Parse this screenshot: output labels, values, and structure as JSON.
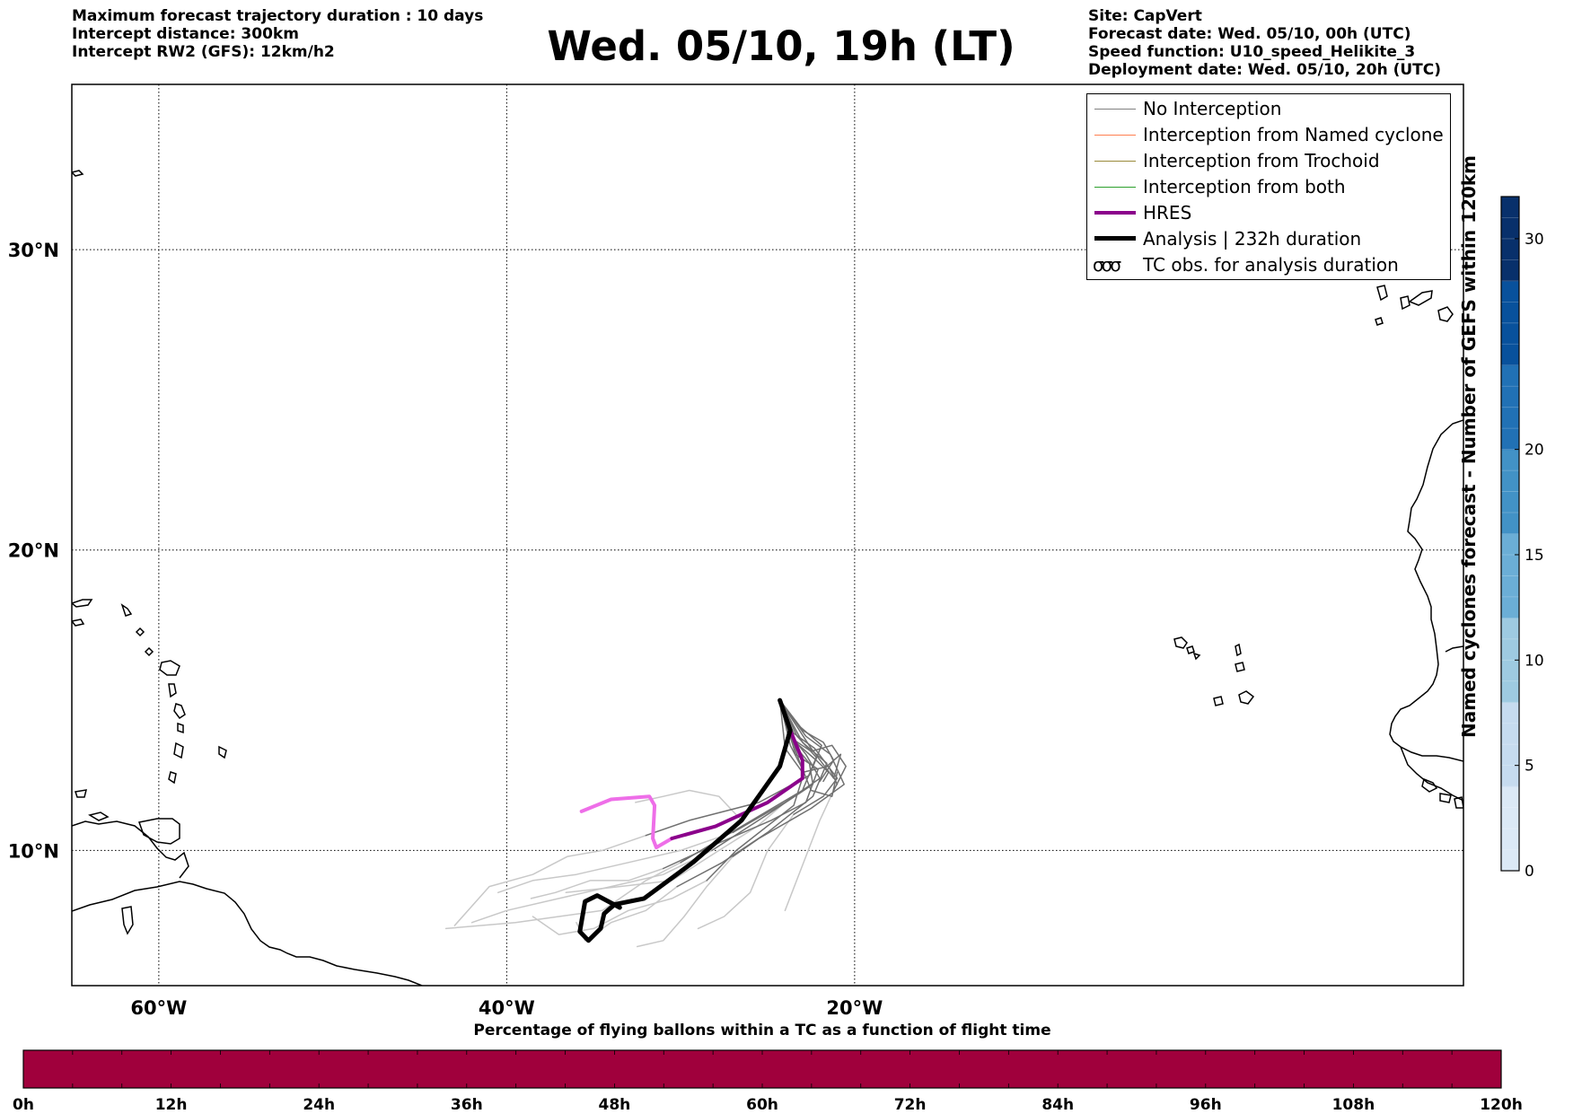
{
  "header": {
    "left_lines": [
      "Maximum forecast trajectory duration : 10 days",
      "Intercept distance: 300km",
      "Intercept RW2 (GFS):  12km/h2"
    ],
    "title": "Wed. 05/10, 19h (LT)",
    "right_lines": [
      "Site: CapVert",
      "Forecast date: Wed. 05/10, 00h (UTC)",
      "Speed function: U10_speed_Helikite_3",
      "Deployment date: Wed. 05/10, 20h (UTC)"
    ]
  },
  "map": {
    "lon_range": [
      -65,
      15
    ],
    "lat_range": [
      5.5,
      35.5
    ],
    "lon_ticks": [
      {
        "lon": -60,
        "label": "60°W"
      },
      {
        "lon": -40,
        "label": "40°W"
      },
      {
        "lon": -20,
        "label": "20°W"
      }
    ],
    "lat_ticks": [
      {
        "lat": 30,
        "label": "30°N"
      },
      {
        "lat": 20,
        "label": "20°N"
      },
      {
        "lat": 10,
        "label": "10°N"
      }
    ],
    "grid": "dotted"
  },
  "legend": {
    "placement": "top-right",
    "entries": [
      {
        "label": "No Interception",
        "color": "#808080",
        "style": "thin"
      },
      {
        "label": "Interception from Named cyclone",
        "color": "#ff7f50",
        "style": "thin"
      },
      {
        "label": "Interception from Trochoid",
        "color": "#9a8a3a",
        "style": "thin"
      },
      {
        "label": "Interception from both",
        "color": "#2ca02c",
        "style": "thin"
      },
      {
        "label": "HRES",
        "color": "#8b008b",
        "style": "medium"
      },
      {
        "label": "Analysis | 232h duration",
        "color": "#000000",
        "style": "thick"
      },
      {
        "label": "TC obs. for analysis duration",
        "icon": "cyclone-rings-icon",
        "style": "glyph"
      }
    ]
  },
  "colorbar_vertical": {
    "label": "Named cyclones forecast - Number of GEFS within 120km",
    "min": 0,
    "max": 32,
    "ticks": [
      0,
      5,
      10,
      15,
      20,
      30
    ],
    "colors": [
      "#dbe9f6",
      "#c6dbef",
      "#9ecae1",
      "#6baed6",
      "#4292c6",
      "#2171b5",
      "#08519c",
      "#08306b"
    ]
  },
  "colorbar_horizontal": {
    "title": "Percentage of flying ballons within a TC as a function of flight time",
    "ticks": [
      "0h",
      "12h",
      "24h",
      "36h",
      "48h",
      "60h",
      "72h",
      "84h",
      "96h",
      "108h",
      "120h"
    ],
    "fill_color": "#a0003c",
    "segment_hours": 4,
    "max_hours": 120
  },
  "trajectories": {
    "origin": [
      -24.3,
      15.0
    ],
    "analysis": [
      [
        -24.3,
        15.0
      ],
      [
        -23.7,
        14.0
      ],
      [
        -24.3,
        12.8
      ],
      [
        -26.5,
        11.0
      ],
      [
        -29.3,
        9.6
      ],
      [
        -32.1,
        8.4
      ],
      [
        -33.8,
        8.2
      ],
      [
        -34.4,
        7.9
      ],
      [
        -34.6,
        7.4
      ],
      [
        -35.3,
        7.0
      ],
      [
        -35.8,
        7.3
      ],
      [
        -35.5,
        8.3
      ],
      [
        -34.8,
        8.5
      ],
      [
        -33.5,
        8.1
      ]
    ],
    "hres_dark": [
      [
        -24.3,
        15.0
      ],
      [
        -23.7,
        14.0
      ],
      [
        -23.0,
        13.0
      ],
      [
        -23.0,
        12.4
      ],
      [
        -25.0,
        11.6
      ],
      [
        -28.0,
        10.8
      ],
      [
        -30.5,
        10.4
      ]
    ],
    "hres_light": [
      [
        -30.5,
        10.4
      ],
      [
        -31.4,
        10.1
      ],
      [
        -31.6,
        10.4
      ],
      [
        -31.5,
        11.5
      ],
      [
        -31.8,
        11.8
      ],
      [
        -34.0,
        11.7
      ],
      [
        -35.7,
        11.3
      ]
    ],
    "gefs_dark": [
      [
        [
          -24.3,
          15.0
        ],
        [
          -23.4,
          13.6
        ],
        [
          -22.2,
          13.0
        ],
        [
          -21.5,
          12.6
        ],
        [
          -21.8,
          12.3
        ]
      ],
      [
        [
          -24.3,
          15.0
        ],
        [
          -23.0,
          14.0
        ],
        [
          -21.8,
          13.6
        ],
        [
          -21.2,
          13.0
        ],
        [
          -22.0,
          12.3
        ]
      ],
      [
        [
          -24.3,
          15.0
        ],
        [
          -24.0,
          13.4
        ],
        [
          -23.0,
          12.6
        ],
        [
          -21.5,
          12.8
        ],
        [
          -21.0,
          12.2
        ]
      ],
      [
        [
          -24.3,
          15.0
        ],
        [
          -22.5,
          13.4
        ],
        [
          -21.2,
          12.4
        ],
        [
          -20.8,
          13.2
        ],
        [
          -21.6,
          12.8
        ]
      ],
      [
        [
          -24.3,
          15.0
        ],
        [
          -23.2,
          13.0
        ],
        [
          -22.5,
          12.0
        ],
        [
          -21.3,
          11.8
        ],
        [
          -21.0,
          12.6
        ]
      ],
      [
        [
          -24.3,
          15.0
        ],
        [
          -23.9,
          14.0
        ],
        [
          -22.8,
          13.2
        ],
        [
          -22.0,
          12.4
        ],
        [
          -24.0,
          11.6
        ],
        [
          -27.0,
          10.6
        ]
      ],
      [
        [
          -24.3,
          15.0
        ],
        [
          -23.6,
          13.6
        ],
        [
          -22.6,
          12.9
        ],
        [
          -22.4,
          12.2
        ],
        [
          -25.0,
          11.2
        ],
        [
          -28.2,
          10.0
        ]
      ],
      [
        [
          -24.3,
          15.0
        ],
        [
          -23.3,
          13.8
        ],
        [
          -22.2,
          13.1
        ],
        [
          -23.0,
          12.0
        ],
        [
          -26.5,
          10.8
        ],
        [
          -30.0,
          9.6
        ]
      ],
      [
        [
          -24.3,
          15.0
        ],
        [
          -23.1,
          14.1
        ],
        [
          -21.9,
          13.5
        ],
        [
          -22.6,
          12.5
        ],
        [
          -25.5,
          11.6
        ],
        [
          -29.5,
          11.0
        ],
        [
          -32.0,
          10.5
        ]
      ],
      [
        [
          -24.3,
          15.0
        ],
        [
          -23.7,
          13.5
        ],
        [
          -22.9,
          12.6
        ],
        [
          -23.5,
          11.5
        ],
        [
          -26.8,
          10.0
        ],
        [
          -28.5,
          9.0
        ]
      ],
      [
        [
          -24.3,
          15.0
        ],
        [
          -23.0,
          13.6
        ],
        [
          -21.6,
          12.9
        ],
        [
          -22.4,
          11.8
        ],
        [
          -25.0,
          10.6
        ],
        [
          -27.6,
          9.6
        ],
        [
          -30.2,
          8.8
        ]
      ],
      [
        [
          -24.3,
          15.0
        ],
        [
          -23.5,
          13.9
        ],
        [
          -22.3,
          13.4
        ],
        [
          -21.0,
          12.4
        ],
        [
          -21.8,
          11.8
        ],
        [
          -23.5,
          11.2
        ]
      ],
      [
        [
          -24.3,
          15.0
        ],
        [
          -23.8,
          13.8
        ],
        [
          -22.5,
          13.3
        ],
        [
          -21.3,
          13.5
        ],
        [
          -20.5,
          12.8
        ],
        [
          -21.2,
          12.0
        ]
      ],
      [
        [
          -24.3,
          15.0
        ],
        [
          -22.8,
          13.8
        ],
        [
          -21.4,
          13.2
        ],
        [
          -20.6,
          12.2
        ],
        [
          -22.5,
          11.4
        ],
        [
          -25.5,
          10.4
        ],
        [
          -27.0,
          9.8
        ]
      ],
      [
        [
          -24.3,
          15.0
        ],
        [
          -23.4,
          13.2
        ],
        [
          -22.1,
          12.7
        ],
        [
          -22.8,
          11.6
        ],
        [
          -24.8,
          11.0
        ],
        [
          -28.0,
          10.2
        ],
        [
          -31.0,
          9.4
        ]
      ]
    ],
    "gefs_light": [
      [
        [
          -27.0,
          10.6
        ],
        [
          -30.0,
          10.0
        ],
        [
          -33.0,
          9.6
        ],
        [
          -36.0,
          9.2
        ],
        [
          -38.5,
          9.0
        ],
        [
          -40.5,
          8.6
        ]
      ],
      [
        [
          -28.2,
          10.0
        ],
        [
          -31.0,
          9.2
        ],
        [
          -34.0,
          8.8
        ],
        [
          -37.0,
          8.4
        ],
        [
          -40.0,
          8.0
        ],
        [
          -42.0,
          7.6
        ]
      ],
      [
        [
          -30.0,
          9.6
        ],
        [
          -32.0,
          9.0
        ],
        [
          -34.5,
          8.0
        ],
        [
          -37.0,
          7.8
        ],
        [
          -39.5,
          7.6
        ],
        [
          -43.5,
          7.4
        ]
      ],
      [
        [
          -32.0,
          10.5
        ],
        [
          -34.5,
          10.0
        ],
        [
          -36.5,
          9.8
        ],
        [
          -38.5,
          9.2
        ],
        [
          -41.0,
          8.8
        ],
        [
          -43.0,
          7.5
        ]
      ],
      [
        [
          -28.5,
          9.0
        ],
        [
          -30.5,
          8.4
        ],
        [
          -33.0,
          8.0
        ],
        [
          -35.0,
          7.4
        ],
        [
          -37.0,
          7.2
        ],
        [
          -38.5,
          7.8
        ]
      ],
      [
        [
          -30.2,
          8.8
        ],
        [
          -32.0,
          8.0
        ],
        [
          -34.0,
          7.6
        ],
        [
          -35.5,
          7.0
        ],
        [
          -36.0,
          7.6
        ]
      ],
      [
        [
          -23.5,
          11.2
        ],
        [
          -25.0,
          10.0
        ],
        [
          -26.0,
          8.6
        ],
        [
          -27.5,
          7.8
        ],
        [
          -29.0,
          7.4
        ]
      ],
      [
        [
          -21.2,
          12.0
        ],
        [
          -22.0,
          11.0
        ],
        [
          -22.8,
          9.8
        ],
        [
          -23.6,
          8.6
        ],
        [
          -24.0,
          8.0
        ]
      ],
      [
        [
          -27.0,
          9.8
        ],
        [
          -28.5,
          8.8
        ],
        [
          -29.8,
          7.8
        ],
        [
          -31.0,
          7.0
        ],
        [
          -32.5,
          6.8
        ]
      ],
      [
        [
          -31.0,
          9.4
        ],
        [
          -33.0,
          9.0
        ],
        [
          -35.2,
          9.0
        ],
        [
          -37.2,
          8.6
        ],
        [
          -38.6,
          8.4
        ]
      ],
      [
        [
          -26.5,
          11.0
        ],
        [
          -27.8,
          11.8
        ],
        [
          -29.5,
          12.0
        ],
        [
          -31.0,
          11.8
        ],
        [
          -32.6,
          11.6
        ]
      ],
      [
        [
          -24.0,
          11.6
        ],
        [
          -25.6,
          10.8
        ],
        [
          -27.8,
          10.0
        ],
        [
          -30.5,
          9.0
        ],
        [
          -33.5,
          8.8
        ],
        [
          -36.6,
          8.6
        ]
      ]
    ]
  }
}
